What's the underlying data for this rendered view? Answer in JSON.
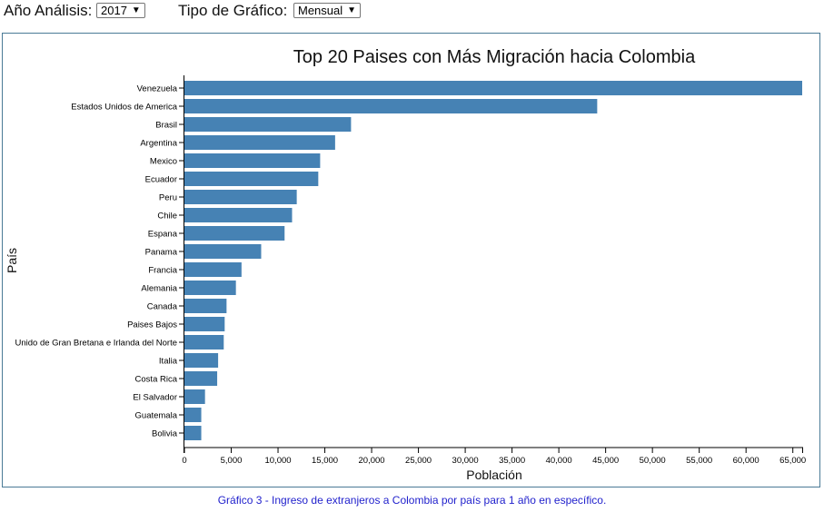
{
  "controls": {
    "year_label": "Año Análisis:",
    "year_value": "2017",
    "chart_type_label": "Tipo de Gráfico:",
    "chart_type_value": "Mensual",
    "dropdown_arrow": "▼"
  },
  "caption": "Gráfico 3 - Ingreso de extranjeros a Colombia por país para 1 año en específico.",
  "colors": {
    "bar": "#4682b4",
    "border": "#4a7a96",
    "caption": "#1f1fcc"
  },
  "chart_data": {
    "type": "bar",
    "orientation": "horizontal",
    "title": "Top 20 Paises con Más Migración hacia Colombia",
    "xlabel": "Población",
    "ylabel": "País",
    "xlim": [
      0,
      66000
    ],
    "xticks": [
      0,
      5000,
      10000,
      15000,
      20000,
      25000,
      30000,
      35000,
      40000,
      45000,
      50000,
      55000,
      60000,
      65000
    ],
    "xtick_labels": [
      "0",
      "5,000",
      "10,000",
      "15,000",
      "20,000",
      "25,000",
      "30,000",
      "35,000",
      "40,000",
      "45,000",
      "50,000",
      "55,000",
      "60,000",
      "65,000"
    ],
    "grid": false,
    "categories": [
      "Venezuela",
      "Estados Unidos de America",
      "Brasil",
      "Argentina",
      "Mexico",
      "Ecuador",
      "Peru",
      "Chile",
      "Espana",
      "Panama",
      "Francia",
      "Alemania",
      "Canada",
      "Paises Bajos",
      "Unido de Gran Bretana e Irlanda del Norte",
      "Italia",
      "Costa Rica",
      "El Salvador",
      "Guatemala",
      "Bolivia"
    ],
    "values": [
      66000,
      44100,
      17800,
      16100,
      14500,
      14300,
      12000,
      11500,
      10700,
      8200,
      6100,
      5500,
      4500,
      4300,
      4200,
      3600,
      3500,
      2200,
      1800,
      1800
    ]
  }
}
